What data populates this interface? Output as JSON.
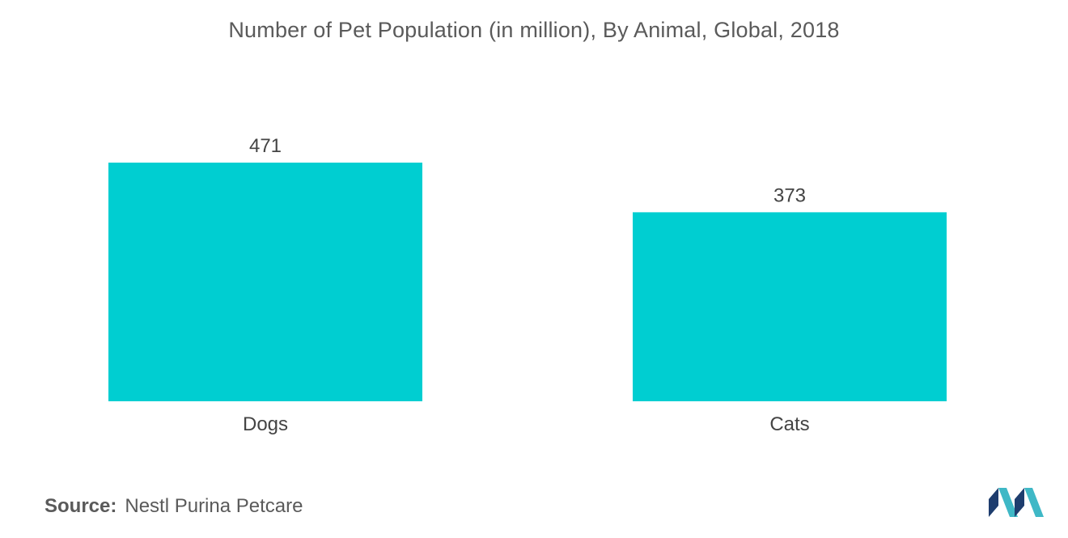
{
  "chart_data": {
    "type": "bar",
    "title": "Number of Pet Population (in million), By Animal, Global, 2018",
    "categories": [
      "Dogs",
      "Cats"
    ],
    "values": [
      471,
      373
    ],
    "data_labels": [
      "471",
      "373"
    ],
    "xlabel": "",
    "ylabel": "",
    "ylim": [
      0,
      471
    ],
    "grid": false,
    "legend": "none"
  },
  "colors": {
    "bar": "#00ced1",
    "logo_dark": "#1e3d6e",
    "logo_light": "#3fb8c6"
  },
  "source": {
    "label": "Source:",
    "text": "Nestl Purina Petcare"
  },
  "logo": {
    "icon": "mordor-intelligence-logo"
  }
}
